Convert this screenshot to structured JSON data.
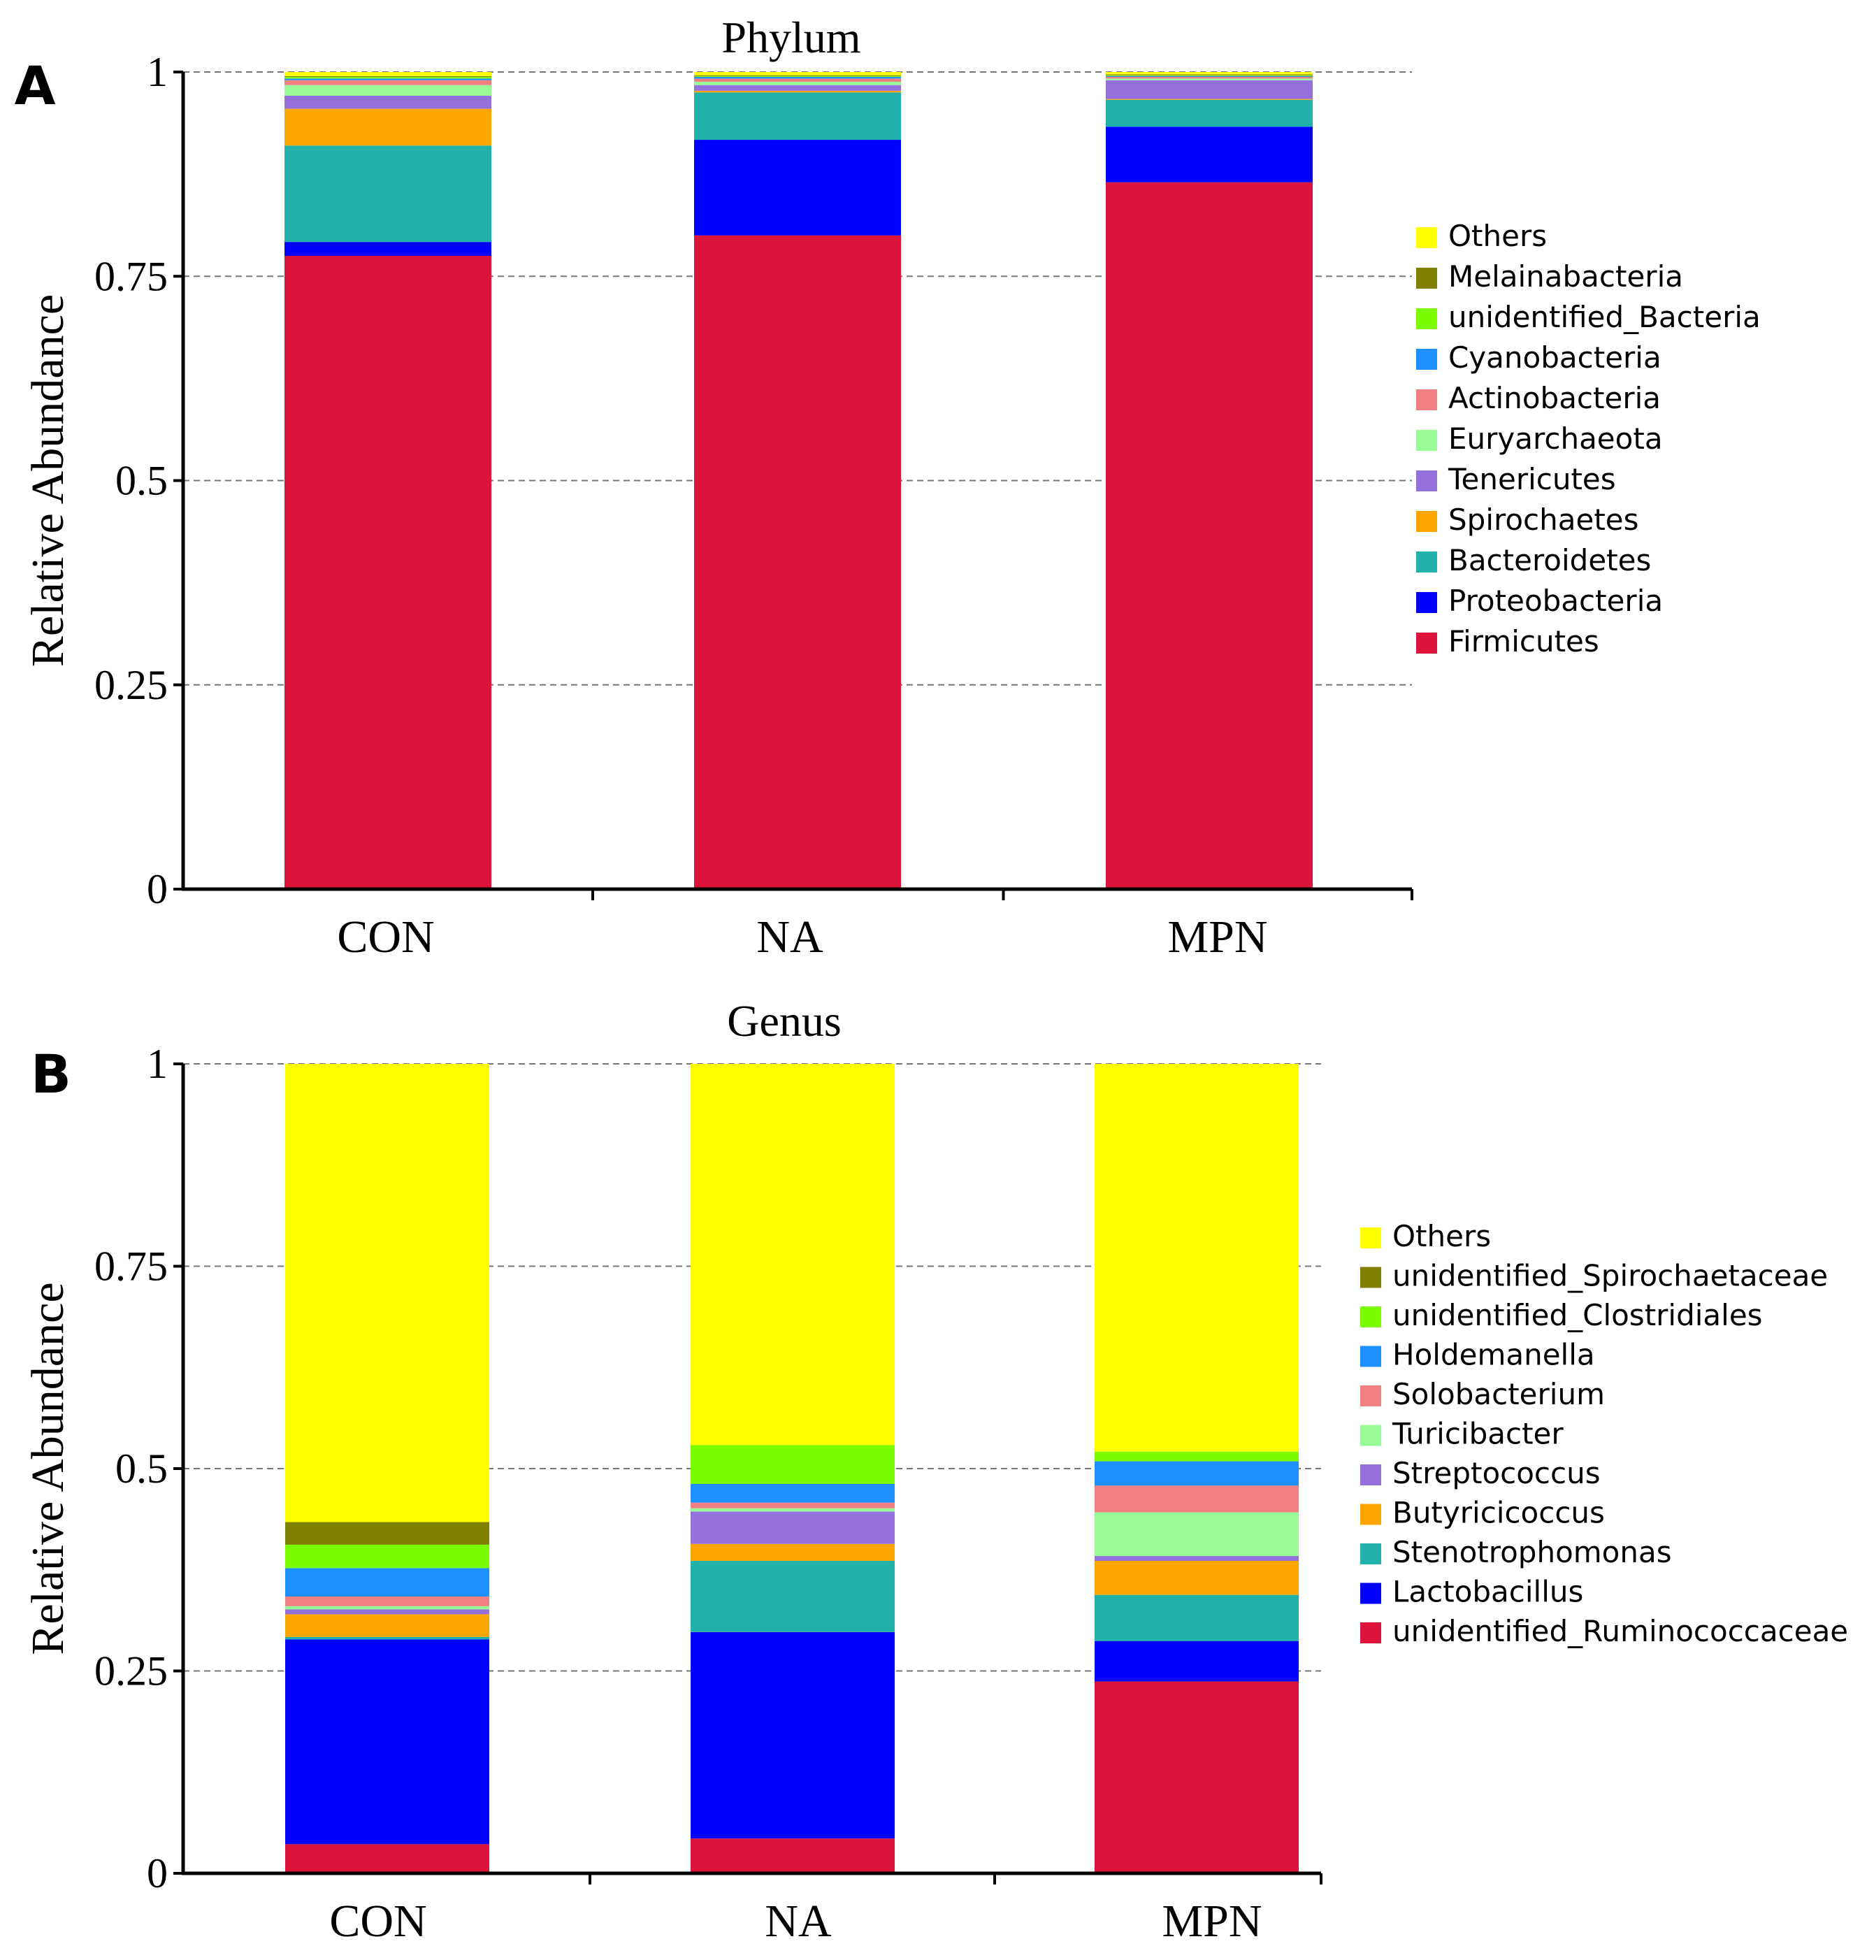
{
  "panels": [
    {
      "panel_label": "A",
      "chart_data": {
        "type": "bar",
        "stacked": true,
        "title": "Phylum",
        "xlabel": "",
        "ylabel": "Relative Abundance",
        "ylim": [
          0,
          1
        ],
        "yticks": [
          0,
          0.25,
          0.5,
          0.75,
          1
        ],
        "ytick_labels": [
          "0",
          "0.25",
          "0.5",
          "0.75",
          "1"
        ],
        "grid": "horizontal dashed",
        "legend_position": "right",
        "categories": [
          "CON",
          "NA",
          "MPN"
        ],
        "series": [
          {
            "name": "Firmicutes",
            "color": "#dc143c",
            "values": [
              0.775,
              0.8,
              0.865
            ]
          },
          {
            "name": "Proteobacteria",
            "color": "#0000ff",
            "values": [
              0.017,
              0.117,
              0.068
            ]
          },
          {
            "name": "Bacteroidetes",
            "color": "#20b2aa",
            "values": [
              0.118,
              0.058,
              0.033
            ]
          },
          {
            "name": "Spirochaetes",
            "color": "#ffa500",
            "values": [
              0.045,
              0.002,
              0.001
            ]
          },
          {
            "name": "Tenericutes",
            "color": "#9370db",
            "values": [
              0.016,
              0.007,
              0.023
            ]
          },
          {
            "name": "Euryarchaeota",
            "color": "#98fb98",
            "values": [
              0.013,
              0.004,
              0.002
            ]
          },
          {
            "name": "Actinobacteria",
            "color": "#f08080",
            "values": [
              0.006,
              0.004,
              0.002
            ]
          },
          {
            "name": "Cyanobacteria",
            "color": "#1e90ff",
            "values": [
              0.002,
              0.002,
              0.001
            ]
          },
          {
            "name": "unidentified_Bacteria",
            "color": "#7cfc00",
            "values": [
              0.002,
              0.001,
              0.001
            ]
          },
          {
            "name": "Melainabacteria",
            "color": "#808000",
            "values": [
              0.001,
              0.001,
              0.001
            ]
          },
          {
            "name": "Others",
            "color": "#ffff00",
            "values": [
              0.005,
              0.004,
              0.003
            ]
          }
        ]
      }
    },
    {
      "panel_label": "B",
      "chart_data": {
        "type": "bar",
        "stacked": true,
        "title": "Genus",
        "xlabel": "",
        "ylabel": "Relative Abundance",
        "ylim": [
          0,
          1
        ],
        "yticks": [
          0,
          0.25,
          0.5,
          0.75,
          1
        ],
        "ytick_labels": [
          "0",
          "0.25",
          "0.5",
          "0.75",
          "1"
        ],
        "grid": "horizontal dashed",
        "legend_position": "right",
        "categories": [
          "CON",
          "NA",
          "MPN"
        ],
        "series": [
          {
            "name": "unidentified_Ruminococcaceae",
            "color": "#dc143c",
            "values": [
              0.036,
              0.043,
              0.237
            ]
          },
          {
            "name": "Lactobacillus",
            "color": "#0000ff",
            "values": [
              0.253,
              0.255,
              0.05
            ]
          },
          {
            "name": "Stenotrophomonas",
            "color": "#20b2aa",
            "values": [
              0.003,
              0.088,
              0.057
            ]
          },
          {
            "name": "Butyricicoccus",
            "color": "#ffa500",
            "values": [
              0.028,
              0.021,
              0.042
            ]
          },
          {
            "name": "Streptococcus",
            "color": "#9370db",
            "values": [
              0.006,
              0.04,
              0.006
            ]
          },
          {
            "name": "Turicibacter",
            "color": "#98fb98",
            "values": [
              0.004,
              0.004,
              0.054
            ]
          },
          {
            "name": "Solobacterium",
            "color": "#f08080",
            "values": [
              0.012,
              0.007,
              0.033
            ]
          },
          {
            "name": "Holdemanella",
            "color": "#1e90ff",
            "values": [
              0.035,
              0.023,
              0.03
            ]
          },
          {
            "name": "unidentified_Clostridiales",
            "color": "#7cfc00",
            "values": [
              0.029,
              0.048,
              0.012
            ]
          },
          {
            "name": "unidentified_Spirochaetaceae",
            "color": "#808000",
            "values": [
              0.028,
              0.0,
              0.0
            ]
          },
          {
            "name": "Others",
            "color": "#ffff00",
            "values": [
              0.566,
              0.471,
              0.479
            ]
          }
        ]
      }
    }
  ]
}
